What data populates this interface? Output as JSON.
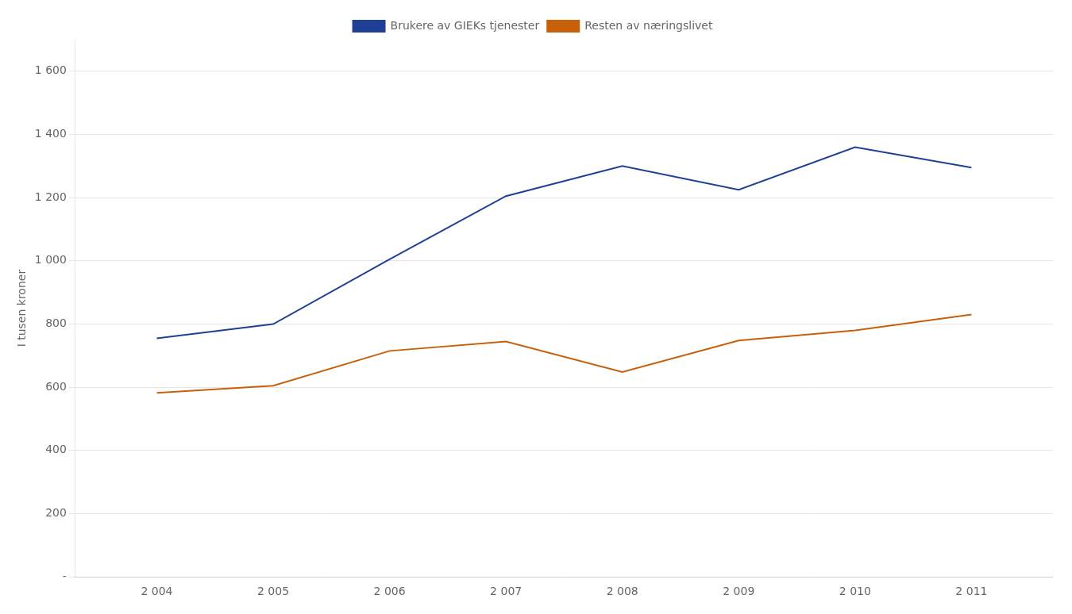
{
  "chart_data": {
    "type": "line",
    "x": [
      2004,
      2005,
      2006,
      2007,
      2008,
      2009,
      2010,
      2011
    ],
    "series": [
      {
        "name": "Brukere av GIEKs tjenester",
        "color": "#1f4096",
        "values": [
          755,
          800,
          1005,
          1205,
          1300,
          1225,
          1360,
          1295
        ]
      },
      {
        "name": "Resten av næringslivet",
        "color": "#c8600a",
        "values": [
          582,
          605,
          715,
          745,
          648,
          748,
          780,
          830
        ]
      }
    ],
    "y_label": "I tusen kroner",
    "xlim": [
      2003.3,
      2011.7
    ],
    "xticks": [
      {
        "value": 2004,
        "label": "2 004"
      },
      {
        "value": 2005,
        "label": "2 005"
      },
      {
        "value": 2006,
        "label": "2 006"
      },
      {
        "value": 2007,
        "label": "2 007"
      },
      {
        "value": 2008,
        "label": "2 008"
      },
      {
        "value": 2009,
        "label": "2 009"
      },
      {
        "value": 2010,
        "label": "2 010"
      },
      {
        "value": 2011,
        "label": "2 011"
      }
    ],
    "ylim": [
      0,
      1700
    ],
    "yticks": [
      {
        "value": 0,
        "label": "-"
      },
      200,
      400,
      600,
      800,
      {
        "value": 1000,
        "label": "1 000"
      },
      {
        "value": 1200,
        "label": "1 200"
      },
      {
        "value": 1400,
        "label": "1 400"
      },
      {
        "value": 1600,
        "label": "1 600"
      }
    ],
    "grid": "y",
    "legend": "top"
  }
}
